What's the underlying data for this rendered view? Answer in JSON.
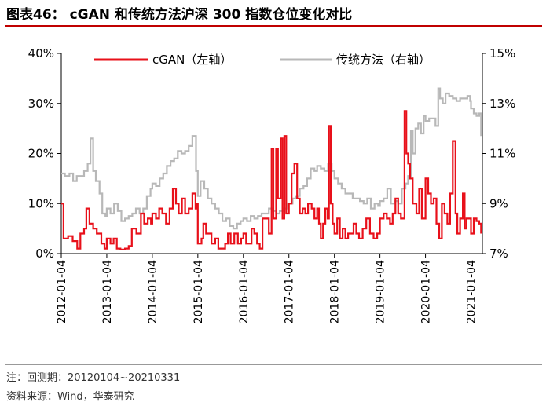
{
  "header": {
    "title": "图表46：  cGAN 和传统方法沪深 300 指数仓位变化对比"
  },
  "footer": {
    "note": "注：回测期：20120104~20210331",
    "source": "资料来源：Wind，华泰研究"
  },
  "chart_data": {
    "type": "line",
    "title": "",
    "grid": false,
    "legend_position": "top",
    "x_ticks": [
      "2012-01-04",
      "2013-01-04",
      "2014-01-04",
      "2015-01-04",
      "2016-01-04",
      "2017-01-04",
      "2018-01-04",
      "2019-01-04",
      "2020-01-04",
      "2021-01-04"
    ],
    "x_range": [
      2012.0,
      2021.25
    ],
    "y_left": {
      "range": [
        0,
        40
      ],
      "ticks": [
        "0%",
        "10%",
        "20%",
        "30%",
        "40%"
      ],
      "tick_values": [
        0,
        10,
        20,
        30,
        40
      ]
    },
    "y_right": {
      "range": [
        7,
        15
      ],
      "ticks": [
        "7%",
        "9%",
        "11%",
        "13%",
        "15%"
      ],
      "tick_values": [
        7,
        9,
        11,
        13,
        15
      ]
    },
    "series": [
      {
        "name": "cGAN（左轴）",
        "axis": "left",
        "color": "#e8101a",
        "step": true,
        "points": [
          [
            2012.0,
            10
          ],
          [
            2012.05,
            3
          ],
          [
            2012.15,
            3.5
          ],
          [
            2012.25,
            2.5
          ],
          [
            2012.35,
            1
          ],
          [
            2012.42,
            4
          ],
          [
            2012.5,
            5
          ],
          [
            2012.55,
            9
          ],
          [
            2012.62,
            6
          ],
          [
            2012.7,
            5
          ],
          [
            2012.78,
            4
          ],
          [
            2012.88,
            2
          ],
          [
            2012.95,
            1
          ],
          [
            2013.0,
            3
          ],
          [
            2013.08,
            2
          ],
          [
            2013.15,
            3
          ],
          [
            2013.22,
            1
          ],
          [
            2013.3,
            0.8
          ],
          [
            2013.4,
            1
          ],
          [
            2013.48,
            1.5
          ],
          [
            2013.55,
            5
          ],
          [
            2013.65,
            4
          ],
          [
            2013.75,
            8
          ],
          [
            2013.82,
            6
          ],
          [
            2013.9,
            7
          ],
          [
            2013.97,
            6
          ],
          [
            2014.0,
            8
          ],
          [
            2014.08,
            7
          ],
          [
            2014.15,
            9
          ],
          [
            2014.22,
            8
          ],
          [
            2014.3,
            6
          ],
          [
            2014.38,
            9
          ],
          [
            2014.45,
            13
          ],
          [
            2014.52,
            10
          ],
          [
            2014.58,
            8
          ],
          [
            2014.65,
            11
          ],
          [
            2014.72,
            8
          ],
          [
            2014.8,
            9
          ],
          [
            2014.88,
            12
          ],
          [
            2014.95,
            9
          ],
          [
            2014.98,
            10
          ],
          [
            2015.0,
            2
          ],
          [
            2015.08,
            3
          ],
          [
            2015.12,
            6
          ],
          [
            2015.18,
            4
          ],
          [
            2015.25,
            4
          ],
          [
            2015.3,
            2
          ],
          [
            2015.38,
            3
          ],
          [
            2015.45,
            1
          ],
          [
            2015.52,
            1
          ],
          [
            2015.6,
            2
          ],
          [
            2015.66,
            4
          ],
          [
            2015.72,
            2
          ],
          [
            2015.8,
            4
          ],
          [
            2015.88,
            2
          ],
          [
            2015.95,
            3
          ],
          [
            2016.0,
            4
          ],
          [
            2016.06,
            2
          ],
          [
            2016.12,
            2
          ],
          [
            2016.18,
            5
          ],
          [
            2016.24,
            4
          ],
          [
            2016.3,
            2
          ],
          [
            2016.36,
            1
          ],
          [
            2016.42,
            7
          ],
          [
            2016.5,
            7
          ],
          [
            2016.56,
            4
          ],
          [
            2016.62,
            21
          ],
          [
            2016.66,
            7
          ],
          [
            2016.72,
            21
          ],
          [
            2016.76,
            11
          ],
          [
            2016.82,
            23
          ],
          [
            2016.86,
            7
          ],
          [
            2016.9,
            23.5
          ],
          [
            2016.94,
            8
          ],
          [
            2017.0,
            10
          ],
          [
            2017.06,
            16
          ],
          [
            2017.12,
            18
          ],
          [
            2017.18,
            11
          ],
          [
            2017.24,
            8
          ],
          [
            2017.3,
            9
          ],
          [
            2017.36,
            8
          ],
          [
            2017.42,
            10
          ],
          [
            2017.5,
            9
          ],
          [
            2017.56,
            7
          ],
          [
            2017.62,
            9
          ],
          [
            2017.66,
            6
          ],
          [
            2017.7,
            3
          ],
          [
            2017.75,
            6
          ],
          [
            2017.8,
            9
          ],
          [
            2017.85,
            7
          ],
          [
            2017.88,
            25.5
          ],
          [
            2017.92,
            10
          ],
          [
            2017.96,
            6
          ],
          [
            2018.0,
            4
          ],
          [
            2018.06,
            7
          ],
          [
            2018.12,
            3
          ],
          [
            2018.18,
            5
          ],
          [
            2018.24,
            3
          ],
          [
            2018.3,
            4
          ],
          [
            2018.36,
            4
          ],
          [
            2018.42,
            6
          ],
          [
            2018.48,
            4
          ],
          [
            2018.54,
            3
          ],
          [
            2018.62,
            5
          ],
          [
            2018.7,
            7
          ],
          [
            2018.78,
            4
          ],
          [
            2018.86,
            3
          ],
          [
            2018.94,
            4
          ],
          [
            2019.0,
            7
          ],
          [
            2019.08,
            8
          ],
          [
            2019.15,
            7
          ],
          [
            2019.22,
            6
          ],
          [
            2019.28,
            8
          ],
          [
            2019.34,
            11
          ],
          [
            2019.4,
            8
          ],
          [
            2019.46,
            7
          ],
          [
            2019.54,
            28.5
          ],
          [
            2019.58,
            20
          ],
          [
            2019.62,
            18
          ],
          [
            2019.66,
            15
          ],
          [
            2019.72,
            10
          ],
          [
            2019.8,
            8
          ],
          [
            2019.86,
            13
          ],
          [
            2019.92,
            7
          ],
          [
            2020.0,
            15
          ],
          [
            2020.06,
            12
          ],
          [
            2020.12,
            10
          ],
          [
            2020.18,
            11
          ],
          [
            2020.24,
            6
          ],
          [
            2020.3,
            3
          ],
          [
            2020.36,
            10
          ],
          [
            2020.42,
            8
          ],
          [
            2020.48,
            6
          ],
          [
            2020.54,
            12
          ],
          [
            2020.6,
            22.5
          ],
          [
            2020.66,
            8
          ],
          [
            2020.7,
            4
          ],
          [
            2020.76,
            7
          ],
          [
            2020.82,
            12
          ],
          [
            2020.86,
            5
          ],
          [
            2020.9,
            7
          ],
          [
            2021.0,
            4
          ],
          [
            2021.06,
            7
          ],
          [
            2021.12,
            6.5
          ],
          [
            2021.18,
            6
          ],
          [
            2021.22,
            4
          ]
        ]
      },
      {
        "name": "传统方法（右轴）",
        "axis": "right",
        "color": "#b8b8b8",
        "step": true,
        "points": [
          [
            2012.0,
            10.2
          ],
          [
            2012.08,
            10.1
          ],
          [
            2012.18,
            10.2
          ],
          [
            2012.26,
            9.9
          ],
          [
            2012.34,
            10.1
          ],
          [
            2012.42,
            10.1
          ],
          [
            2012.5,
            10.3
          ],
          [
            2012.58,
            10.6
          ],
          [
            2012.64,
            11.6
          ],
          [
            2012.7,
            10.3
          ],
          [
            2012.76,
            9.9
          ],
          [
            2012.84,
            9.4
          ],
          [
            2012.9,
            8.6
          ],
          [
            2012.97,
            8.5
          ],
          [
            2013.0,
            8.8
          ],
          [
            2013.08,
            8.6
          ],
          [
            2013.16,
            9.0
          ],
          [
            2013.24,
            8.7
          ],
          [
            2013.32,
            8.3
          ],
          [
            2013.4,
            8.4
          ],
          [
            2013.48,
            8.5
          ],
          [
            2013.56,
            8.6
          ],
          [
            2013.64,
            8.8
          ],
          [
            2013.72,
            8.6
          ],
          [
            2013.8,
            8.8
          ],
          [
            2013.88,
            9.3
          ],
          [
            2013.96,
            9.6
          ],
          [
            2014.0,
            9.8
          ],
          [
            2014.08,
            9.7
          ],
          [
            2014.16,
            10.0
          ],
          [
            2014.24,
            10.2
          ],
          [
            2014.32,
            10.5
          ],
          [
            2014.4,
            10.7
          ],
          [
            2014.48,
            10.8
          ],
          [
            2014.56,
            11.1
          ],
          [
            2014.64,
            11.0
          ],
          [
            2014.72,
            11.1
          ],
          [
            2014.8,
            11.3
          ],
          [
            2014.88,
            11.7
          ],
          [
            2014.96,
            10.3
          ],
          [
            2015.0,
            9.3
          ],
          [
            2015.06,
            9.9
          ],
          [
            2015.14,
            9.6
          ],
          [
            2015.22,
            9.2
          ],
          [
            2015.3,
            9.0
          ],
          [
            2015.38,
            8.8
          ],
          [
            2015.46,
            8.6
          ],
          [
            2015.54,
            8.3
          ],
          [
            2015.62,
            8.4
          ],
          [
            2015.7,
            8.1
          ],
          [
            2015.78,
            8.0
          ],
          [
            2015.86,
            8.2
          ],
          [
            2015.94,
            8.3
          ],
          [
            2016.0,
            8.4
          ],
          [
            2016.08,
            8.3
          ],
          [
            2016.16,
            8.5
          ],
          [
            2016.24,
            8.4
          ],
          [
            2016.32,
            8.5
          ],
          [
            2016.4,
            8.6
          ],
          [
            2016.48,
            8.6
          ],
          [
            2016.56,
            8.8
          ],
          [
            2016.64,
            8.7
          ],
          [
            2016.72,
            8.6
          ],
          [
            2016.8,
            8.7
          ],
          [
            2016.88,
            8.8
          ],
          [
            2016.96,
            9.0
          ],
          [
            2017.0,
            9.0
          ],
          [
            2017.08,
            9.2
          ],
          [
            2017.16,
            9.3
          ],
          [
            2017.24,
            9.6
          ],
          [
            2017.32,
            9.7
          ],
          [
            2017.4,
            10.0
          ],
          [
            2017.48,
            10.4
          ],
          [
            2017.56,
            10.3
          ],
          [
            2017.62,
            10.5
          ],
          [
            2017.7,
            10.4
          ],
          [
            2017.78,
            10.3
          ],
          [
            2017.86,
            10.6
          ],
          [
            2017.94,
            10.3
          ],
          [
            2018.0,
            10.0
          ],
          [
            2018.08,
            9.8
          ],
          [
            2018.16,
            9.6
          ],
          [
            2018.24,
            9.4
          ],
          [
            2018.32,
            9.4
          ],
          [
            2018.4,
            9.2
          ],
          [
            2018.48,
            9.2
          ],
          [
            2018.56,
            9.1
          ],
          [
            2018.64,
            9.0
          ],
          [
            2018.72,
            9.2
          ],
          [
            2018.8,
            8.8
          ],
          [
            2018.88,
            9.0
          ],
          [
            2018.96,
            8.9
          ],
          [
            2019.0,
            9.1
          ],
          [
            2019.08,
            9.2
          ],
          [
            2019.16,
            9.6
          ],
          [
            2019.24,
            9.0
          ],
          [
            2019.32,
            9.1
          ],
          [
            2019.4,
            9.0
          ],
          [
            2019.48,
            9.6
          ],
          [
            2019.56,
            9.8
          ],
          [
            2019.62,
            10.1
          ],
          [
            2019.68,
            11.9
          ],
          [
            2019.72,
            11.0
          ],
          [
            2019.78,
            12.0
          ],
          [
            2019.84,
            12.2
          ],
          [
            2019.9,
            11.8
          ],
          [
            2019.96,
            12.5
          ],
          [
            2020.0,
            12.3
          ],
          [
            2020.08,
            12.4
          ],
          [
            2020.16,
            12.4
          ],
          [
            2020.22,
            12.1
          ],
          [
            2020.28,
            13.6
          ],
          [
            2020.32,
            13.2
          ],
          [
            2020.38,
            13.0
          ],
          [
            2020.44,
            13.4
          ],
          [
            2020.52,
            13.3
          ],
          [
            2020.6,
            13.2
          ],
          [
            2020.68,
            13.1
          ],
          [
            2020.76,
            13.2
          ],
          [
            2020.84,
            13.2
          ],
          [
            2020.92,
            13.3
          ],
          [
            2020.98,
            13.1
          ],
          [
            2021.0,
            12.8
          ],
          [
            2021.06,
            12.6
          ],
          [
            2021.12,
            12.5
          ],
          [
            2021.18,
            12.6
          ],
          [
            2021.22,
            11.7
          ]
        ]
      }
    ]
  }
}
